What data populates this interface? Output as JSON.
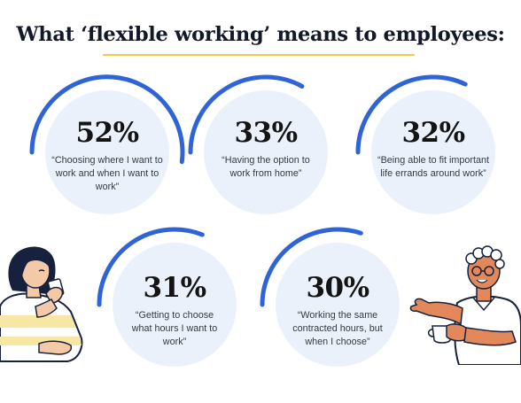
{
  "title": "What ‘flexible working’ means to employees:",
  "colors": {
    "arc": "#2f64d8",
    "circle": "#eaf1fb",
    "underline": "#f2c94c",
    "text": "#141414"
  },
  "chart_data": {
    "type": "radial-progress",
    "title": "What ‘flexible working’ means to employees:",
    "unit": "%",
    "items": [
      {
        "value": 52,
        "label": "52%",
        "description": "“Choosing where I want to work and when I want to work”"
      },
      {
        "value": 33,
        "label": "33%",
        "description": "“Having the option to work from home”"
      },
      {
        "value": 32,
        "label": "32%",
        "description": "“Being able to fit important life errands around work”"
      },
      {
        "value": 31,
        "label": "31%",
        "description": "“Getting to choose what hours I want to work”"
      },
      {
        "value": 30,
        "label": "30%",
        "description": "“Working the same contracted hours, but when I choose”"
      }
    ]
  },
  "illustrations": {
    "left": "woman-drinking-coffee-illustration",
    "right": "man-holding-cup-illustration"
  }
}
